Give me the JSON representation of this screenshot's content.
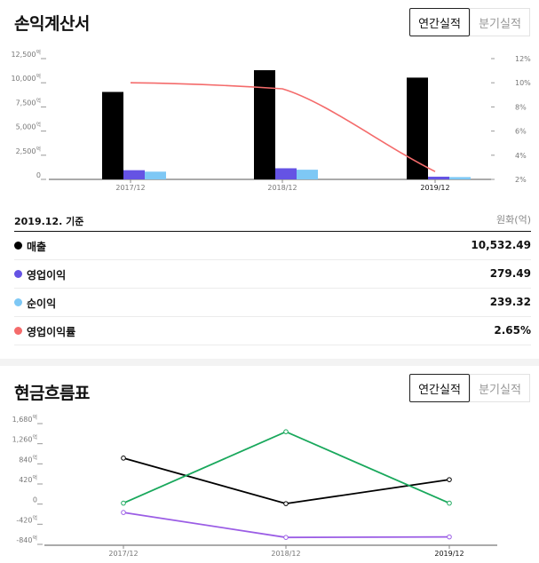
{
  "income": {
    "title": "손익계산서",
    "tabs": [
      {
        "label": "연간실적",
        "active": true
      },
      {
        "label": "분기실적",
        "active": false
      }
    ],
    "legend_date": "2019.12. 기준",
    "legend_unit": "원화(억)",
    "legend": [
      {
        "name": "매출",
        "value": "10,532.49",
        "color": "#000000"
      },
      {
        "name": "영업이익",
        "value": "279.49",
        "color": "#6553e4"
      },
      {
        "name": "순이익",
        "value": "239.32",
        "color": "#7ec8f5"
      },
      {
        "name": "영업이익률",
        "value": "2.65%",
        "color": "#f46b6b"
      }
    ]
  },
  "cashflow": {
    "title": "현금흐름표",
    "tabs": [
      {
        "label": "연간실적",
        "active": true
      },
      {
        "label": "분기실적",
        "active": false
      }
    ]
  },
  "chart_data": [
    {
      "type": "bar",
      "categories": [
        "2017/12",
        "2018/12",
        "2019/12"
      ],
      "highlight_category": "2019/12",
      "series": [
        {
          "name": "매출",
          "values": [
            9050,
            11300,
            10532.49
          ],
          "color": "#000000"
        },
        {
          "name": "영업이익",
          "values": [
            950,
            1150,
            279.49
          ],
          "color": "#6553e4"
        },
        {
          "name": "순이익",
          "values": [
            800,
            1000,
            239.32
          ],
          "color": "#7ec8f5"
        }
      ],
      "line_series": [
        {
          "name": "영업이익률",
          "values": [
            10.0,
            9.5,
            2.65
          ],
          "color": "#f46b6b",
          "axis": "right"
        }
      ],
      "y_ticks": [
        "12,500",
        "10,000",
        "7,500",
        "5,000",
        "2,500",
        "0"
      ],
      "y_tick_values": [
        12500,
        10000,
        7500,
        5000,
        2500,
        0
      ],
      "y_unit": "억",
      "ylim": [
        0,
        12500
      ],
      "y2_ticks": [
        "12%",
        "10%",
        "8%",
        "6%",
        "4%",
        "2%"
      ],
      "y2_tick_values": [
        12,
        10,
        8,
        6,
        4,
        2
      ],
      "y2lim": [
        2,
        12
      ],
      "grid": false
    },
    {
      "type": "line",
      "categories": [
        "2017/12",
        "2018/12",
        "2019/12"
      ],
      "highlight_category": "2019/12",
      "series": [
        {
          "values": [
            960,
            10,
            510
          ],
          "color": "#000000"
        },
        {
          "values": [
            20,
            1510,
            20
          ],
          "color": "#19a85c"
        },
        {
          "values": [
            -175,
            -695,
            -685
          ],
          "color": "#9b5de5"
        }
      ],
      "y_ticks": [
        "1,680",
        "1,260",
        "840",
        "420",
        "0",
        "-420",
        "-840"
      ],
      "y_tick_values": [
        1680,
        1260,
        840,
        420,
        0,
        -420,
        -840
      ],
      "y_unit": "억",
      "ylim": [
        -840,
        1680
      ],
      "grid": false
    }
  ]
}
